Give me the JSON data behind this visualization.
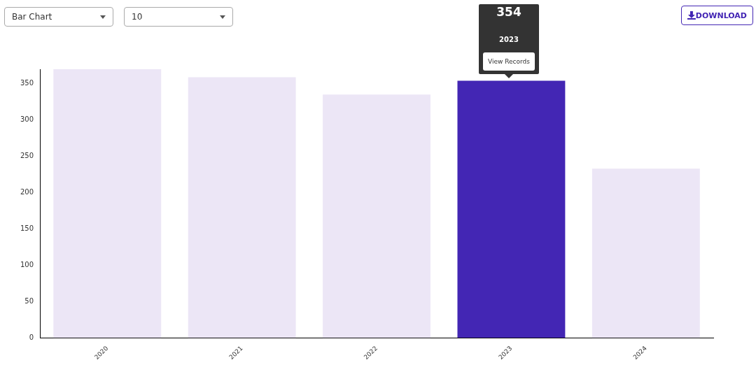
{
  "chart_data": {
    "type": "bar",
    "categories": [
      "2020",
      "2021",
      "2022",
      "2023",
      "2024"
    ],
    "values": [
      370,
      359,
      335,
      354,
      233
    ],
    "colors": [
      "#ece6f6",
      "#ece6f6",
      "#ece6f6",
      "#4326b4",
      "#ece6f6"
    ],
    "ylim": [
      0,
      370
    ],
    "yticks": [
      0,
      50,
      100,
      150,
      200,
      250,
      300,
      350
    ],
    "grid": false,
    "legend": false,
    "annotations": [
      "Bar Chart",
      "10",
      "354",
      "2023",
      "View Records",
      "DOWNLOAD"
    ]
  }
}
